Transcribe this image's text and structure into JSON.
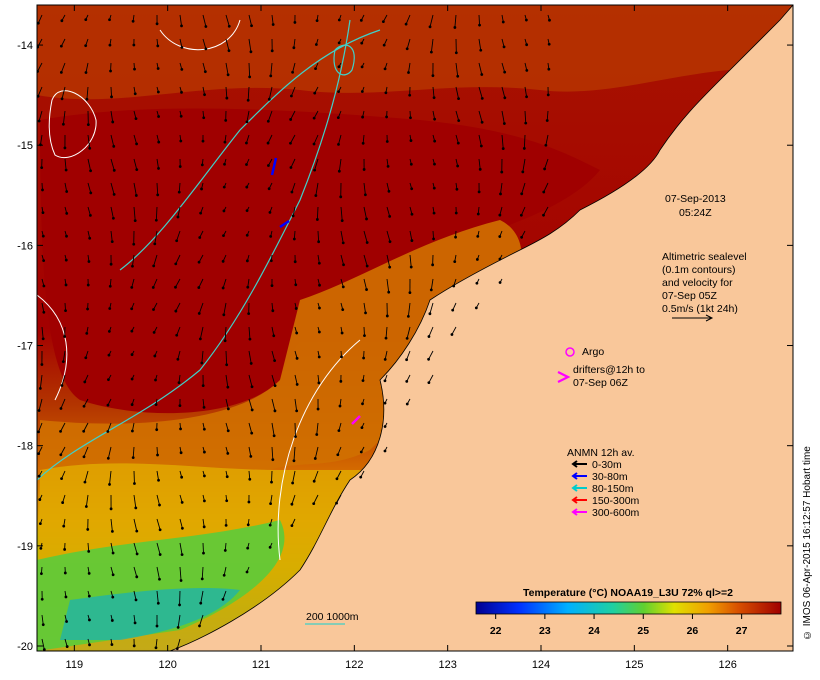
{
  "map": {
    "date_line1": "07-Sep-2013",
    "date_line2": "05:24Z",
    "lon_ticks": [
      119,
      120,
      121,
      122,
      123,
      124,
      125,
      126
    ],
    "lat_ticks": [
      -14,
      -15,
      -16,
      -17,
      -18,
      -19,
      -20
    ],
    "lon_range": [
      118.6,
      126.7
    ],
    "lat_range": [
      -20.05,
      -13.6
    ],
    "altimetry": {
      "line1": "Altimetric sealevel",
      "line2": "(0.1m contours)",
      "line3": "and velocity for",
      "line4": "07-Sep 05Z",
      "line5": "0.5m/s (1kt 24h)"
    },
    "argo_label": "Argo",
    "drifters": {
      "line1": "drifters@12h to",
      "line2": "07-Sep 06Z"
    },
    "anmn": {
      "title": "ANMN 12h av.",
      "items": [
        {
          "label": "0-30m",
          "color": "#000000"
        },
        {
          "label": "30-80m",
          "color": "#0000ff"
        },
        {
          "label": "80-150m",
          "color": "#00cccc"
        },
        {
          "label": "150-300m",
          "color": "#ff0000"
        },
        {
          "label": "300-600m",
          "color": "#ff00ff"
        }
      ]
    },
    "depth_contours_label": "200  1000m",
    "colorbar": {
      "title": "Temperature (°C) NOAA19_L3U 72% ql>=2",
      "ticks": [
        22,
        23,
        24,
        25,
        26,
        27
      ],
      "range": [
        21.6,
        27.8
      ]
    },
    "credit": "© IMOS 06-Apr-2015 16:12:57 Hobart time",
    "colors": {
      "land": "#f9c79a",
      "warm_max": "#a30000",
      "contour_bathy": "#40d0c8"
    }
  }
}
